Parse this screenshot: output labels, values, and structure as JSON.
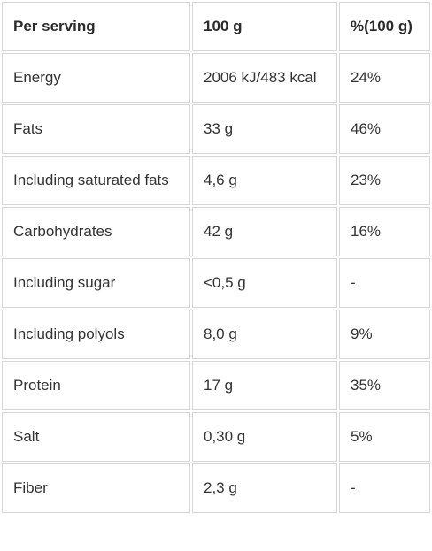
{
  "table": {
    "headers": [
      "Per serving",
      "100 g",
      "%(100 g)"
    ],
    "rows": [
      [
        "Energy",
        "2006 kJ/483 kcal",
        "24%"
      ],
      [
        "Fats",
        "33 g",
        "46%"
      ],
      [
        "Including saturated fats",
        "4,6 g",
        "23%"
      ],
      [
        "Carbohydrates",
        "42 g",
        "16%"
      ],
      [
        "Including sugar",
        "<0,5 g",
        "-"
      ],
      [
        "Including polyols",
        "8,0 g",
        "9%"
      ],
      [
        "Protein",
        "17 g",
        "35%"
      ],
      [
        "Salt",
        "0,30 g",
        "5%"
      ],
      [
        "Fiber",
        "2,3 g",
        "-"
      ]
    ]
  }
}
